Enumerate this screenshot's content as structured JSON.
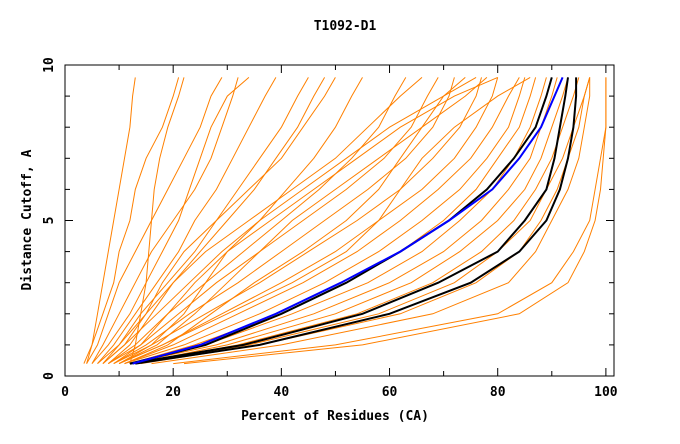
{
  "chart_data": {
    "type": "line",
    "title": "T1092-D1",
    "xlabel": "Percent of Residues (CA)",
    "ylabel": "Distance Cutoff, A",
    "xlim": [
      0,
      101.5
    ],
    "ylim": [
      0,
      10
    ],
    "xticks": [
      0,
      20,
      40,
      60,
      80,
      100
    ],
    "yticks": [
      0,
      5,
      10
    ],
    "grid": false,
    "legend": "none",
    "colors": {
      "models": "#ff8000",
      "highlight_black": "#000000",
      "highlight_blue": "#0000ff"
    },
    "y_levels": [
      0.4,
      1,
      2,
      3,
      4,
      5,
      6,
      7,
      8,
      9,
      9.6
    ],
    "series": [
      {
        "color": "models",
        "x": [
          12,
          13,
          14,
          15,
          15.5,
          16,
          16.5,
          17.5,
          19,
          21,
          22
        ]
      },
      {
        "color": "models",
        "x": [
          4,
          5,
          7,
          9,
          10,
          12,
          13,
          15,
          18,
          20,
          21
        ]
      },
      {
        "color": "models",
        "x": [
          3.5,
          5,
          6,
          7,
          8,
          9,
          10,
          11,
          12,
          12.5,
          13
        ]
      },
      {
        "color": "models",
        "x": [
          4,
          6,
          8,
          10,
          13,
          16,
          19,
          22,
          25,
          27,
          29
        ]
      },
      {
        "color": "models",
        "x": [
          5,
          7,
          10,
          13,
          16,
          20,
          24,
          27,
          29,
          31,
          32
        ]
      },
      {
        "color": "models",
        "x": [
          5,
          8,
          12,
          15,
          18,
          21,
          23,
          25,
          27,
          30,
          34
        ]
      },
      {
        "color": "models",
        "x": [
          6,
          9,
          13,
          17,
          21,
          24,
          28,
          31,
          34,
          37,
          39
        ]
      },
      {
        "color": "models",
        "x": [
          7,
          10,
          14,
          19,
          24,
          28,
          32,
          36,
          40,
          43,
          45
        ]
      },
      {
        "color": "models",
        "x": [
          6,
          10,
          15,
          20,
          25,
          30,
          35,
          39,
          43,
          46,
          48
        ]
      },
      {
        "color": "models",
        "x": [
          7,
          11,
          17,
          23,
          29,
          36,
          41,
          46,
          50,
          53,
          55
        ]
      },
      {
        "color": "models",
        "x": [
          8,
          13,
          19,
          26,
          33,
          40,
          47,
          53,
          58,
          61,
          63
        ]
      },
      {
        "color": "models",
        "x": [
          8,
          14,
          21,
          28,
          36,
          44,
          52,
          59,
          64,
          67,
          69
        ]
      },
      {
        "color": "models",
        "x": [
          9,
          15,
          23,
          32,
          40,
          48,
          56,
          63,
          68,
          71,
          72
        ]
      },
      {
        "color": "models",
        "x": [
          9,
          16,
          26,
          36,
          45,
          54,
          62,
          68,
          73,
          76,
          77
        ]
      },
      {
        "color": "models",
        "x": [
          10,
          18,
          29,
          40,
          50,
          58,
          66,
          72,
          76,
          79,
          80
        ]
      },
      {
        "color": "models",
        "x": [
          10,
          17,
          24,
          30,
          36,
          42,
          50,
          58,
          66,
          74,
          78
        ]
      },
      {
        "color": "models",
        "x": [
          11,
          20,
          32,
          44,
          54,
          62,
          69,
          75,
          79,
          82,
          84
        ]
      },
      {
        "color": "models",
        "x": [
          11,
          22,
          36,
          48,
          58,
          66,
          73,
          78,
          82,
          84,
          85
        ]
      },
      {
        "color": "models",
        "x": [
          12,
          24,
          40,
          52,
          62,
          70,
          76,
          80,
          84,
          86,
          87
        ]
      },
      {
        "color": "models",
        "x": [
          12,
          26,
          42,
          56,
          66,
          73,
          79,
          83,
          86,
          88,
          89
        ]
      },
      {
        "color": "models",
        "x": [
          12,
          28,
          46,
          60,
          70,
          77,
          82,
          86,
          88,
          90,
          91
        ]
      },
      {
        "color": "models",
        "x": [
          13,
          30,
          50,
          64,
          73,
          80,
          85,
          88,
          90,
          92,
          93
        ]
      },
      {
        "color": "models",
        "x": [
          13,
          32,
          54,
          68,
          77,
          83,
          87,
          90,
          92,
          94,
          95
        ]
      },
      {
        "color": "models",
        "x": [
          13,
          34,
          58,
          72,
          80,
          86,
          89,
          92,
          94,
          96,
          97
        ]
      },
      {
        "color": "models",
        "x": [
          14,
          36,
          62,
          76,
          84,
          88,
          91,
          93,
          95,
          96,
          97
        ]
      },
      {
        "color": "models",
        "x": [
          16,
          40,
          68,
          82,
          87,
          90,
          93,
          95,
          96,
          97,
          97
        ]
      },
      {
        "color": "models",
        "x": [
          20,
          50,
          80,
          90,
          94,
          97,
          98,
          99,
          100,
          100,
          100
        ]
      },
      {
        "color": "models",
        "x": [
          22,
          55,
          84,
          93,
          96,
          98,
          99,
          99.5,
          100,
          100,
          100
        ]
      },
      {
        "color": "models",
        "x": [
          10,
          16,
          22,
          26,
          30,
          36,
          44,
          52,
          60,
          70,
          76
        ]
      },
      {
        "color": "models",
        "x": [
          9,
          14,
          19,
          24,
          30,
          38,
          46,
          54,
          62,
          72,
          80
        ]
      },
      {
        "color": "models",
        "x": [
          11,
          19,
          27,
          35,
          44,
          52,
          58,
          62,
          66,
          70,
          74
        ]
      },
      {
        "color": "models",
        "x": [
          10,
          18,
          30,
          42,
          52,
          58,
          62,
          66,
          72,
          80,
          86
        ]
      },
      {
        "color": "models",
        "x": [
          8,
          12,
          16,
          20,
          26,
          34,
          42,
          50,
          56,
          62,
          66
        ]
      },
      {
        "color": "models",
        "x": [
          7,
          11,
          15,
          18,
          22,
          28,
          34,
          40,
          44,
          48,
          50
        ]
      },
      {
        "color": "highlight_black",
        "x": [
          12,
          33,
          55,
          69,
          80,
          85,
          89,
          90.5,
          91.5,
          92.5,
          93
        ]
      },
      {
        "color": "highlight_black",
        "x": [
          12,
          26,
          40,
          52,
          62,
          71,
          78,
          83,
          87,
          89,
          90
        ]
      },
      {
        "color": "highlight_black",
        "x": [
          13,
          36,
          60,
          75,
          84,
          89,
          91.5,
          93,
          94,
          94.5,
          94.5
        ]
      },
      {
        "color": "highlight_blue",
        "x": [
          12.5,
          25,
          39,
          51,
          62,
          71,
          79,
          84,
          88,
          90.5,
          92
        ]
      }
    ]
  }
}
